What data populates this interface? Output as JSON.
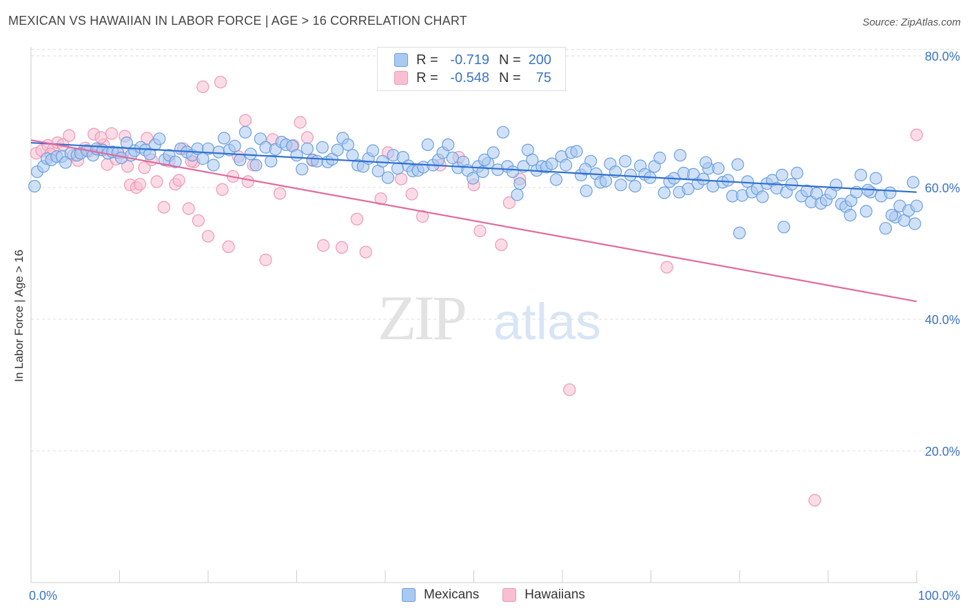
{
  "header": {
    "title": "MEXICAN VS HAWAIIAN IN LABOR FORCE | AGE > 16 CORRELATION CHART",
    "source": "Source: ZipAtlas.com"
  },
  "watermark": {
    "zip": "ZIP",
    "atlas": "atlas"
  },
  "legend": {
    "mexicans": {
      "r_label": "R =",
      "r_value": "-0.719",
      "n_label": "N =",
      "n_value": "200"
    },
    "hawaiians": {
      "r_label": "R =",
      "r_value": "-0.548",
      "n_label": "N =",
      "n_value": "75"
    }
  },
  "bottom_legend": {
    "mexicans": "Mexicans",
    "hawaiians": "Hawaiians"
  },
  "colors": {
    "mexicans_fill": "#a9c9f0",
    "mexicans_stroke": "#6a9fe0",
    "mexicans_line": "#2f6fd0",
    "hawaiians_fill": "#f8bfd2",
    "hawaiians_stroke": "#ee97b4",
    "hawaiians_line": "#e2699a",
    "tick_label": "#3a74c5",
    "grid": "#dddddd",
    "axis": "#cccccc"
  },
  "chart_data": {
    "type": "scatter",
    "title": "MEXICAN VS HAWAIIAN IN LABOR FORCE | AGE > 16 CORRELATION CHART",
    "xlabel": "",
    "ylabel": "In Labor Force | Age > 16",
    "xlim": [
      0,
      100
    ],
    "ylim": [
      0,
      81
    ],
    "x_tick_labels": [
      "0.0%",
      "100.0%"
    ],
    "y_ticks": [
      20,
      40,
      60,
      80
    ],
    "y_tick_labels": [
      "20.0%",
      "40.0%",
      "60.0%",
      "80.0%"
    ],
    "grid": true,
    "legend_position": "top-center",
    "series": [
      {
        "name": "Mexicans",
        "r": -0.719,
        "n": 200,
        "trend": {
          "x": [
            0,
            100
          ],
          "y": [
            66.8,
            59.3
          ]
        },
        "points": [
          [
            0.4,
            60.2
          ],
          [
            0.7,
            62.4
          ],
          [
            1.4,
            63.2
          ],
          [
            1.8,
            64.4
          ],
          [
            2.3,
            64.2
          ],
          [
            2.9,
            64.7
          ],
          [
            3.5,
            64.7
          ],
          [
            3.9,
            63.8
          ],
          [
            4.5,
            65.2
          ],
          [
            5.2,
            64.9
          ],
          [
            5.6,
            65.2
          ],
          [
            6.3,
            65.6
          ],
          [
            7.0,
            64.9
          ],
          [
            7.4,
            65.9
          ],
          [
            8.1,
            65.7
          ],
          [
            8.7,
            65.2
          ],
          [
            9.2,
            65.4
          ],
          [
            9.8,
            65.3
          ],
          [
            10.2,
            64.5
          ],
          [
            10.8,
            66.8
          ],
          [
            11.3,
            64.9
          ],
          [
            11.7,
            65.6
          ],
          [
            12.4,
            66.1
          ],
          [
            12.9,
            65.7
          ],
          [
            13.4,
            65.1
          ],
          [
            14.0,
            66.5
          ],
          [
            14.5,
            67.4
          ],
          [
            15.1,
            64.2
          ],
          [
            15.6,
            64.9
          ],
          [
            16.3,
            63.9
          ],
          [
            16.9,
            65.9
          ],
          [
            17.6,
            65.4
          ],
          [
            18.2,
            64.9
          ],
          [
            18.8,
            65.9
          ],
          [
            19.4,
            64.4
          ],
          [
            20.0,
            65.9
          ],
          [
            20.6,
            63.4
          ],
          [
            21.2,
            65.4
          ],
          [
            21.8,
            67.5
          ],
          [
            22.4,
            65.7
          ],
          [
            23.0,
            66.3
          ],
          [
            23.6,
            64.2
          ],
          [
            24.2,
            68.4
          ],
          [
            24.8,
            65.1
          ],
          [
            25.4,
            63.4
          ],
          [
            25.9,
            67.4
          ],
          [
            26.5,
            66.1
          ],
          [
            27.1,
            64.0
          ],
          [
            27.6,
            65.8
          ],
          [
            28.3,
            66.9
          ],
          [
            28.8,
            66.5
          ],
          [
            29.5,
            66.3
          ],
          [
            30.0,
            64.9
          ],
          [
            30.6,
            62.8
          ],
          [
            31.2,
            65.9
          ],
          [
            31.8,
            64.2
          ],
          [
            32.3,
            64.0
          ],
          [
            32.9,
            66.1
          ],
          [
            33.5,
            63.9
          ],
          [
            34.0,
            64.3
          ],
          [
            34.6,
            65.7
          ],
          [
            35.2,
            67.5
          ],
          [
            35.8,
            66.5
          ],
          [
            36.3,
            64.9
          ],
          [
            36.9,
            63.4
          ],
          [
            37.5,
            63.2
          ],
          [
            38.1,
            64.4
          ],
          [
            38.6,
            65.6
          ],
          [
            39.2,
            62.5
          ],
          [
            39.7,
            64.0
          ],
          [
            40.3,
            61.5
          ],
          [
            40.9,
            64.9
          ],
          [
            41.4,
            62.9
          ],
          [
            42.0,
            64.6
          ],
          [
            42.6,
            63.3
          ],
          [
            43.1,
            62.5
          ],
          [
            43.7,
            62.6
          ],
          [
            44.3,
            63.1
          ],
          [
            44.8,
            66.5
          ],
          [
            45.4,
            63.4
          ],
          [
            46.0,
            64.2
          ],
          [
            46.5,
            65.3
          ],
          [
            47.1,
            66.5
          ],
          [
            47.6,
            64.5
          ],
          [
            48.2,
            63.0
          ],
          [
            48.8,
            63.9
          ],
          [
            49.3,
            62.6
          ],
          [
            49.9,
            61.4
          ],
          [
            50.5,
            63.2
          ],
          [
            51.0,
            62.4
          ],
          [
            51.6,
            63.7
          ],
          [
            52.2,
            65.3
          ],
          [
            52.7,
            62.7
          ],
          [
            53.3,
            68.4
          ],
          [
            53.8,
            63.2
          ],
          [
            54.4,
            62.4
          ],
          [
            54.9,
            58.9
          ],
          [
            55.6,
            63.2
          ],
          [
            56.1,
            65.7
          ],
          [
            56.6,
            64.2
          ],
          [
            57.1,
            62.6
          ],
          [
            57.7,
            63.2
          ],
          [
            58.2,
            63.1
          ],
          [
            58.8,
            63.6
          ],
          [
            59.3,
            61.2
          ],
          [
            59.9,
            64.7
          ],
          [
            60.4,
            63.4
          ],
          [
            61.0,
            65.3
          ],
          [
            61.6,
            65.5
          ],
          [
            62.1,
            61.9
          ],
          [
            62.7,
            59.5
          ],
          [
            63.2,
            64.0
          ],
          [
            63.8,
            62.1
          ],
          [
            64.3,
            60.8
          ],
          [
            64.9,
            61.0
          ],
          [
            65.4,
            63.6
          ],
          [
            66.0,
            62.4
          ],
          [
            66.6,
            60.4
          ],
          [
            67.1,
            64.0
          ],
          [
            67.7,
            61.9
          ],
          [
            68.2,
            60.2
          ],
          [
            68.8,
            63.3
          ],
          [
            69.3,
            62.0
          ],
          [
            69.9,
            61.5
          ],
          [
            70.4,
            63.2
          ],
          [
            71.0,
            64.5
          ],
          [
            71.5,
            59.2
          ],
          [
            72.1,
            60.9
          ],
          [
            72.6,
            61.4
          ],
          [
            73.2,
            59.3
          ],
          [
            73.7,
            62.2
          ],
          [
            74.2,
            59.8
          ],
          [
            74.8,
            62.0
          ],
          [
            75.3,
            60.6
          ],
          [
            75.9,
            61.3
          ],
          [
            76.5,
            62.9
          ],
          [
            77.0,
            60.2
          ],
          [
            77.6,
            62.9
          ],
          [
            78.1,
            60.8
          ],
          [
            78.7,
            61.1
          ],
          [
            79.2,
            58.7
          ],
          [
            79.8,
            63.5
          ],
          [
            80.3,
            58.8
          ],
          [
            80.9,
            60.9
          ],
          [
            81.4,
            59.3
          ],
          [
            82.0,
            59.8
          ],
          [
            82.6,
            58.6
          ],
          [
            83.1,
            60.6
          ],
          [
            83.7,
            61.1
          ],
          [
            84.2,
            59.9
          ],
          [
            84.8,
            61.9
          ],
          [
            85.3,
            59.3
          ],
          [
            85.9,
            60.5
          ],
          [
            86.5,
            62.2
          ],
          [
            87.0,
            58.7
          ],
          [
            87.6,
            59.5
          ],
          [
            88.1,
            57.8
          ],
          [
            88.7,
            59.1
          ],
          [
            89.2,
            57.6
          ],
          [
            89.8,
            58.1
          ],
          [
            90.3,
            59.1
          ],
          [
            90.9,
            60.4
          ],
          [
            91.5,
            57.5
          ],
          [
            92.0,
            57.1
          ],
          [
            92.6,
            58.0
          ],
          [
            93.2,
            59.3
          ],
          [
            93.7,
            61.9
          ],
          [
            94.3,
            56.4
          ],
          [
            94.8,
            59.3
          ],
          [
            95.4,
            61.4
          ],
          [
            96.0,
            58.7
          ],
          [
            96.5,
            53.8
          ],
          [
            97.0,
            59.2
          ],
          [
            97.6,
            55.5
          ],
          [
            98.1,
            57.2
          ],
          [
            98.6,
            55.0
          ],
          [
            99.1,
            56.5
          ],
          [
            99.6,
            60.8
          ],
          [
            100.0,
            57.2
          ],
          [
            99.8,
            54.5
          ],
          [
            85.0,
            54.0
          ],
          [
            94.5,
            59.6
          ],
          [
            92.5,
            55.8
          ],
          [
            80.0,
            53.1
          ],
          [
            97.2,
            55.8
          ],
          [
            55.2,
            60.6
          ],
          [
            73.3,
            64.9
          ],
          [
            76.2,
            63.8
          ],
          [
            62.6,
            62.8
          ],
          [
            51.2,
            64.2
          ]
        ]
      },
      {
        "name": "Hawaiians",
        "r": -0.548,
        "n": 75,
        "trend": {
          "x": [
            0,
            100
          ],
          "y": [
            67.2,
            42.7
          ]
        },
        "points": [
          [
            0.6,
            65.2
          ],
          [
            1.2,
            65.6
          ],
          [
            1.9,
            66.4
          ],
          [
            2.5,
            65.8
          ],
          [
            3.0,
            66.8
          ],
          [
            3.6,
            66.5
          ],
          [
            4.3,
            67.9
          ],
          [
            4.8,
            64.9
          ],
          [
            5.3,
            64.1
          ],
          [
            6.1,
            66.0
          ],
          [
            6.5,
            65.5
          ],
          [
            7.1,
            68.1
          ],
          [
            7.6,
            65.7
          ],
          [
            8.2,
            66.5
          ],
          [
            8.6,
            63.5
          ],
          [
            9.1,
            68.2
          ],
          [
            9.6,
            64.3
          ],
          [
            10.4,
            65.3
          ],
          [
            10.6,
            67.8
          ],
          [
            10.9,
            63.2
          ],
          [
            11.2,
            60.4
          ],
          [
            11.9,
            60.0
          ],
          [
            12.3,
            60.5
          ],
          [
            13.1,
            67.5
          ],
          [
            13.6,
            64.2
          ],
          [
            14.2,
            60.9
          ],
          [
            15.0,
            57.0
          ],
          [
            15.6,
            64.0
          ],
          [
            16.3,
            60.5
          ],
          [
            16.7,
            61.1
          ],
          [
            17.2,
            65.9
          ],
          [
            17.8,
            56.8
          ],
          [
            18.4,
            63.9
          ],
          [
            18.9,
            55.0
          ],
          [
            19.4,
            75.3
          ],
          [
            20.0,
            52.6
          ],
          [
            21.4,
            76.0
          ],
          [
            21.6,
            59.7
          ],
          [
            22.3,
            51.0
          ],
          [
            22.8,
            61.7
          ],
          [
            23.4,
            64.7
          ],
          [
            24.2,
            70.2
          ],
          [
            24.5,
            60.9
          ],
          [
            25.1,
            63.4
          ],
          [
            26.5,
            49.0
          ],
          [
            27.3,
            67.3
          ],
          [
            28.1,
            59.1
          ],
          [
            29.6,
            66.4
          ],
          [
            30.4,
            69.9
          ],
          [
            31.2,
            67.6
          ],
          [
            31.8,
            64.1
          ],
          [
            33.0,
            51.2
          ],
          [
            35.1,
            50.9
          ],
          [
            36.8,
            55.2
          ],
          [
            37.8,
            50.2
          ],
          [
            39.5,
            58.3
          ],
          [
            40.3,
            65.3
          ],
          [
            41.8,
            61.3
          ],
          [
            43.0,
            59.0
          ],
          [
            44.2,
            55.6
          ],
          [
            46.2,
            63.4
          ],
          [
            48.3,
            64.6
          ],
          [
            50.0,
            60.4
          ],
          [
            50.7,
            53.4
          ],
          [
            53.1,
            51.3
          ],
          [
            54.0,
            57.7
          ],
          [
            55.2,
            61.3
          ],
          [
            60.8,
            29.3
          ],
          [
            71.8,
            47.9
          ],
          [
            88.5,
            12.5
          ],
          [
            100.0,
            68.0
          ],
          [
            2.2,
            65.1
          ],
          [
            7.9,
            67.6
          ],
          [
            12.8,
            63.0
          ],
          [
            18.1,
            64.0
          ]
        ]
      }
    ]
  }
}
